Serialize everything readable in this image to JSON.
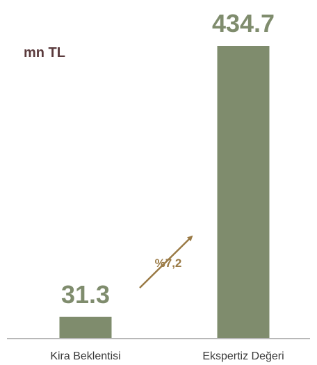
{
  "chart_data": {
    "type": "bar",
    "unit_label": "mn TL",
    "categories": [
      "Kira Beklentisi",
      "Ekspertiz Değeri"
    ],
    "values": [
      31.3,
      434.7
    ],
    "value_labels": [
      "31.3",
      "434.7"
    ],
    "annotation": "%7,2",
    "ylim": [
      0,
      434.7
    ],
    "grid": false,
    "legend": "none",
    "colors": {
      "bar": "#7f8c6d",
      "value_text": "#7f8c6d",
      "unit_text": "#5a3a3c",
      "arrow": "#9a7a45",
      "axis": "#a0a0a0",
      "category_text": "#3a3a3a"
    }
  }
}
